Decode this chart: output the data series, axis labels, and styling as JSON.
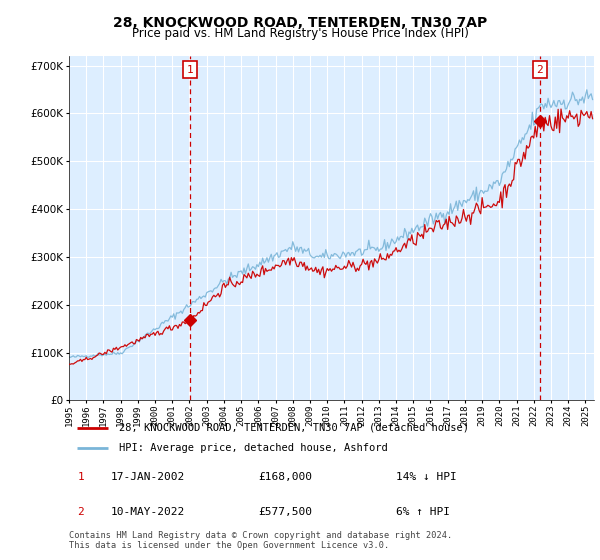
{
  "title": "28, KNOCKWOOD ROAD, TENTERDEN, TN30 7AP",
  "subtitle": "Price paid vs. HM Land Registry's House Price Index (HPI)",
  "legend_label_red": "28, KNOCKWOOD ROAD, TENTERDEN, TN30 7AP (detached house)",
  "legend_label_blue": "HPI: Average price, detached house, Ashford",
  "transaction1_date": "17-JAN-2002",
  "transaction1_price": "£168,000",
  "transaction1_hpi": "14% ↓ HPI",
  "transaction2_date": "10-MAY-2022",
  "transaction2_price": "£577,500",
  "transaction2_hpi": "6% ↑ HPI",
  "footer": "Contains HM Land Registry data © Crown copyright and database right 2024.\nThis data is licensed under the Open Government Licence v3.0.",
  "vline1_x": 2002.04,
  "vline2_x": 2022.36,
  "marker1_price": 168000,
  "marker2_price": 577500,
  "ylim": [
    0,
    720000
  ],
  "xlim_start": 1995,
  "xlim_end": 2025.5,
  "red_color": "#cc0000",
  "blue_color": "#7ab5d8",
  "vline_color": "#cc0000",
  "bg_color": "#ffffff",
  "plot_bg_color": "#ddeeff",
  "grid_color": "#ffffff"
}
